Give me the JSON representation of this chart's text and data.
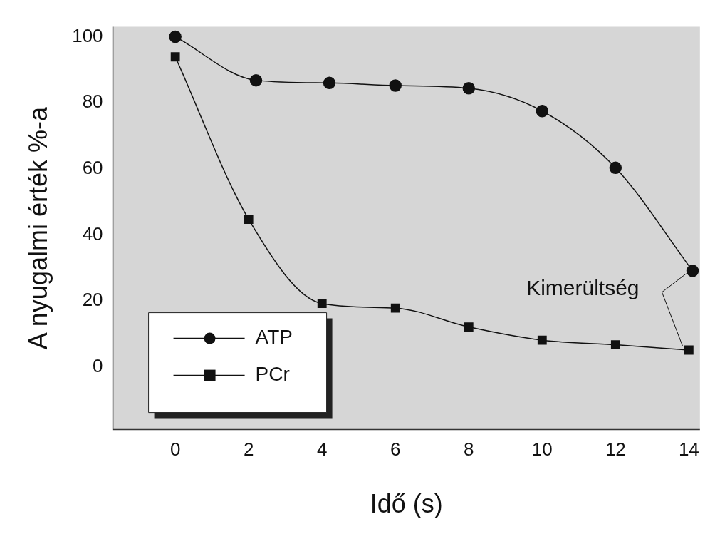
{
  "chart_data": {
    "type": "line",
    "xlabel": "Idő (s)",
    "ylabel": "A nyugalmi érték %-a",
    "series": [
      {
        "name": "ATP",
        "color": "#111111",
        "marker": "circle",
        "x": [
          0,
          2.2,
          4.2,
          6,
          8,
          10,
          12,
          14.1
        ],
        "values": [
          100,
          86.8,
          86,
          85.2,
          84.4,
          77.5,
          60.3,
          29.1
        ]
      },
      {
        "name": "PCr",
        "color": "#111111",
        "marker": "square",
        "x": [
          0,
          2,
          4,
          6,
          8,
          10,
          12,
          14
        ],
        "values": [
          93.9,
          44.7,
          19.2,
          17.8,
          12.1,
          8.1,
          6.7,
          5.1
        ]
      }
    ],
    "xlim": [
      -1.7,
      14.3
    ],
    "xticks": [
      0,
      2,
      4,
      6,
      8,
      10,
      12,
      14
    ],
    "ylim": [
      -19,
      103
    ],
    "yticks": [
      0,
      20,
      40,
      60,
      80,
      100
    ],
    "grid": false,
    "legend": "bottom left",
    "line_style": "solid",
    "annotations": [
      {
        "text": "Kimerültség",
        "x": 14.1,
        "y": 29.1
      }
    ]
  }
}
